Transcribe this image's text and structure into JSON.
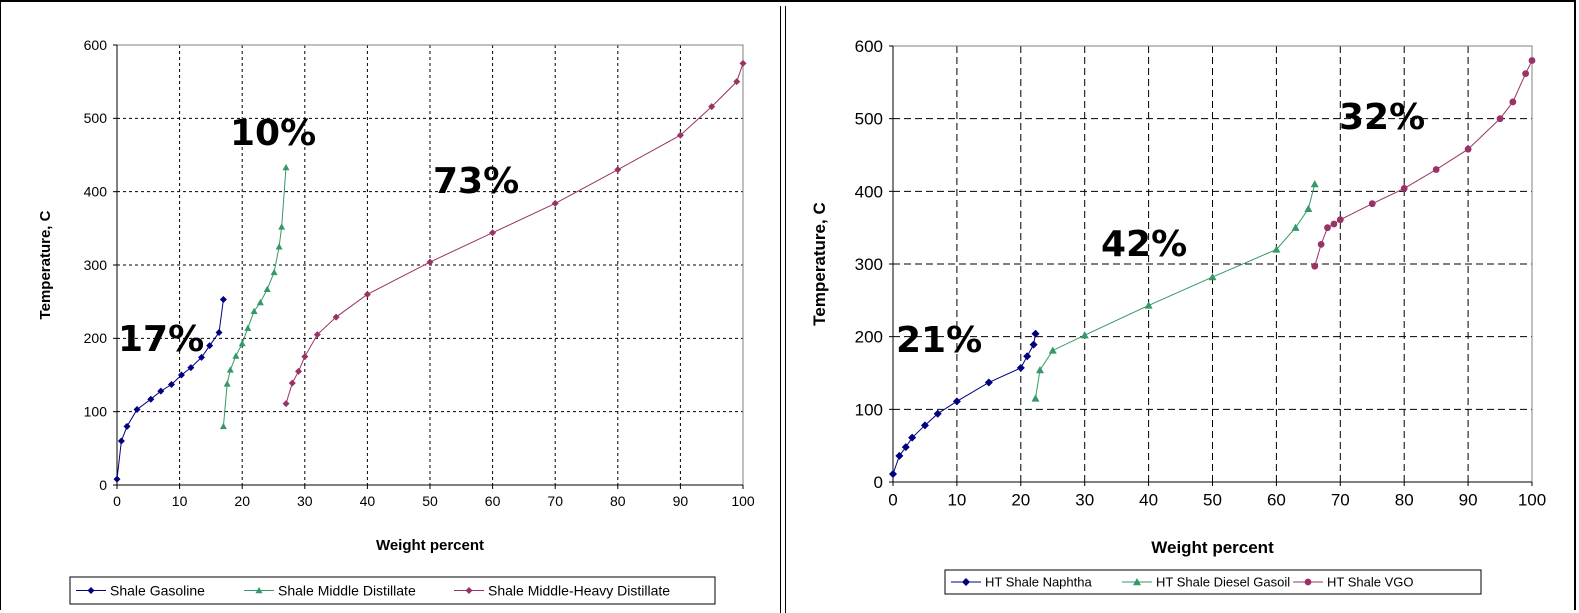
{
  "chart_data": [
    {
      "type": "line",
      "title": "",
      "xlabel": "Weight percent",
      "ylabel": "Temperature, C",
      "xlim": [
        0,
        100
      ],
      "ylim": [
        0,
        600
      ],
      "xticks": [
        "0",
        "10",
        "20",
        "30",
        "40",
        "50",
        "60",
        "70",
        "80",
        "90",
        "100"
      ],
      "yticks": [
        "0",
        "100",
        "200",
        "300",
        "400",
        "500",
        "600"
      ],
      "grid": true,
      "legend_position": "bottom",
      "series": [
        {
          "name": "Shale Gasoline",
          "color": "#000080",
          "marker": "diamond",
          "points": [
            [
              0,
              8
            ],
            [
              0.7,
              60
            ],
            [
              1.6,
              80
            ],
            [
              3.2,
              103
            ],
            [
              5.4,
              117
            ],
            [
              7,
              128
            ],
            [
              8.7,
              137
            ],
            [
              10.3,
              150
            ],
            [
              11.8,
              160
            ],
            [
              13.5,
              174
            ],
            [
              14.8,
              190
            ],
            [
              16.3,
              208
            ],
            [
              17,
              253
            ]
          ]
        },
        {
          "name": "Shale Middle Distillate",
          "color": "#339966",
          "marker": "triangle",
          "points": [
            [
              17,
              80
            ],
            [
              17.6,
              138
            ],
            [
              18.1,
              157
            ],
            [
              19,
              176
            ],
            [
              20,
              193
            ],
            [
              20.9,
              214
            ],
            [
              21.9,
              237
            ],
            [
              22.9,
              249
            ],
            [
              24,
              267
            ],
            [
              25.1,
              290
            ],
            [
              25.9,
              325
            ],
            [
              26.3,
              352
            ],
            [
              27,
              433
            ]
          ]
        },
        {
          "name": "Shale Middle-Heavy Distillate",
          "color": "#993366",
          "marker": "diamond",
          "points": [
            [
              27,
              111
            ],
            [
              28,
              139
            ],
            [
              29,
              155
            ],
            [
              30,
              175
            ],
            [
              32,
              205
            ],
            [
              35,
              229
            ],
            [
              40,
              260
            ],
            [
              50,
              304
            ],
            [
              60,
              344
            ],
            [
              70,
              384
            ],
            [
              80,
              430
            ],
            [
              90,
              477
            ],
            [
              95,
              516
            ],
            [
              99,
              550
            ],
            [
              100,
              575
            ]
          ]
        }
      ],
      "annotations": [
        "17%",
        "10%",
        "73%"
      ]
    },
    {
      "type": "line",
      "title": "",
      "xlabel": "Weight percent",
      "ylabel": "Temperature, C",
      "xlim": [
        0,
        100
      ],
      "ylim": [
        0,
        600
      ],
      "xticks": [
        "0",
        "10",
        "20",
        "30",
        "40",
        "50",
        "60",
        "70",
        "80",
        "90",
        "100"
      ],
      "yticks": [
        "0",
        "100",
        "200",
        "300",
        "400",
        "500",
        "600"
      ],
      "grid": true,
      "legend_position": "bottom",
      "series": [
        {
          "name": "HT Shale Naphtha",
          "color": "#000080",
          "marker": "diamond",
          "points": [
            [
              0,
              11
            ],
            [
              1,
              36
            ],
            [
              2,
              48
            ],
            [
              3,
              61
            ],
            [
              5,
              78
            ],
            [
              7,
              94
            ],
            [
              10,
              111
            ],
            [
              15,
              137
            ],
            [
              20,
              157
            ],
            [
              21,
              173
            ],
            [
              22,
              189
            ],
            [
              22.3,
              204
            ]
          ]
        },
        {
          "name": "HT Shale Diesel Gasoil",
          "color": "#339966",
          "marker": "triangle",
          "points": [
            [
              22.3,
              115
            ],
            [
              23,
              154
            ],
            [
              25,
              181
            ],
            [
              30,
              202
            ],
            [
              40,
              243
            ],
            [
              50,
              282
            ],
            [
              60,
              320
            ],
            [
              63,
              350
            ],
            [
              65,
              376
            ],
            [
              66,
              410
            ]
          ]
        },
        {
          "name": "HT Shale VGO",
          "color": "#993366",
          "marker": "circle",
          "points": [
            [
              66,
              297
            ],
            [
              67,
              327
            ],
            [
              68,
              350
            ],
            [
              69,
              355
            ],
            [
              70,
              361
            ],
            [
              75,
              383
            ],
            [
              80,
              404
            ],
            [
              85,
              430
            ],
            [
              90,
              458
            ],
            [
              95,
              500
            ],
            [
              97,
              523
            ],
            [
              99,
              562
            ],
            [
              100,
              580
            ]
          ]
        }
      ],
      "annotations": [
        "21%",
        "42%",
        "32%"
      ]
    }
  ]
}
